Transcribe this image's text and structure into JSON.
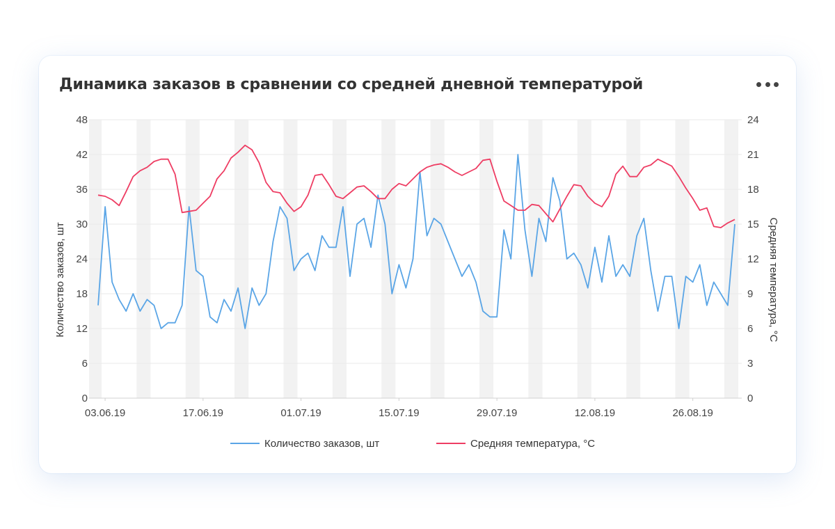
{
  "card": {
    "title": "Динамика заказов в сравнении со средней дневной температурой",
    "menu_icon": "more-horizontal-icon"
  },
  "colors": {
    "orders": "#5aa5e6",
    "temperature": "#ee3d63",
    "weekend_band": "#f2f2f2",
    "grid": "#e9e9e9"
  },
  "chart_data": {
    "type": "line",
    "title": "Динамика заказов в сравнении со средней дневной температурой",
    "start_date": "2019-06-02",
    "xlabel": "",
    "ylabel": "Количество заказов, шт",
    "y2label": "Средняя температура, °C",
    "ylim": [
      0,
      48
    ],
    "y2lim": [
      0,
      24
    ],
    "y_ticks": [
      "0",
      "6",
      "12",
      "18",
      "24",
      "30",
      "36",
      "42",
      "48"
    ],
    "y2_ticks": [
      "0",
      "3",
      "6",
      "9",
      "12",
      "15",
      "18",
      "21",
      "24"
    ],
    "x_tick_labels": [
      {
        "date": "2019-06-03",
        "label": "03.06.19"
      },
      {
        "date": "2019-06-17",
        "label": "17.06.19"
      },
      {
        "date": "2019-07-01",
        "label": "01.07.19"
      },
      {
        "date": "2019-07-15",
        "label": "15.07.19"
      },
      {
        "date": "2019-07-29",
        "label": "29.07.19"
      },
      {
        "date": "2019-08-12",
        "label": "12.08.19"
      },
      {
        "date": "2019-08-26",
        "label": "26.08.19"
      }
    ],
    "weekend_bands": [
      [
        "2019-06-01",
        "2019-06-02"
      ],
      [
        "2019-06-08",
        "2019-06-09"
      ],
      [
        "2019-06-15",
        "2019-06-16"
      ],
      [
        "2019-06-22",
        "2019-06-23"
      ],
      [
        "2019-06-29",
        "2019-06-30"
      ],
      [
        "2019-07-06",
        "2019-07-07"
      ],
      [
        "2019-07-13",
        "2019-07-14"
      ],
      [
        "2019-07-20",
        "2019-07-21"
      ],
      [
        "2019-07-27",
        "2019-07-28"
      ],
      [
        "2019-08-03",
        "2019-08-04"
      ],
      [
        "2019-08-10",
        "2019-08-11"
      ],
      [
        "2019-08-17",
        "2019-08-18"
      ],
      [
        "2019-08-24",
        "2019-08-25"
      ],
      [
        "2019-08-31",
        "2019-09-01"
      ]
    ],
    "grid": true,
    "legend": "bottom",
    "series": [
      {
        "name": "Количество заказов, шт",
        "axis": "left",
        "values": [
          16,
          33,
          20,
          17,
          15,
          18,
          15,
          17,
          16,
          12,
          13,
          13,
          16,
          33,
          22,
          21,
          14,
          13,
          17,
          15,
          19,
          12,
          19,
          16,
          18,
          27,
          33,
          31,
          22,
          24,
          25,
          22,
          28,
          26,
          26,
          33,
          21,
          30,
          31,
          26,
          35,
          30,
          18,
          23,
          19,
          24,
          39,
          28,
          31,
          30,
          27,
          24,
          21,
          23,
          20,
          15,
          14,
          14,
          29,
          24,
          42,
          29,
          21,
          31,
          27,
          38,
          34,
          24,
          25,
          23,
          19,
          26,
          20,
          28,
          21,
          23,
          21,
          28,
          31,
          22,
          15,
          21,
          21,
          12,
          21,
          20,
          23,
          16,
          20,
          18,
          16,
          30
        ]
      },
      {
        "name": "Средняя температура, °C",
        "axis": "right",
        "values": [
          17.5,
          17.4,
          17.1,
          16.6,
          17.8,
          19.1,
          19.6,
          19.9,
          20.4,
          20.6,
          20.6,
          19.3,
          16.0,
          16.1,
          16.2,
          16.8,
          17.4,
          18.9,
          19.6,
          20.7,
          21.2,
          21.8,
          21.4,
          20.3,
          18.6,
          17.8,
          17.7,
          16.8,
          16.1,
          16.5,
          17.5,
          19.2,
          19.3,
          18.4,
          17.4,
          17.2,
          17.7,
          18.2,
          18.3,
          17.8,
          17.2,
          17.2,
          18.0,
          18.5,
          18.3,
          18.9,
          19.5,
          19.9,
          20.1,
          20.2,
          19.9,
          19.5,
          19.2,
          19.5,
          19.8,
          20.5,
          20.6,
          18.7,
          17.0,
          16.6,
          16.2,
          16.2,
          16.7,
          16.6,
          15.9,
          15.2,
          16.3,
          17.4,
          18.4,
          18.3,
          17.4,
          16.8,
          16.5,
          17.4,
          19.3,
          20.0,
          19.1,
          19.1,
          19.9,
          20.1,
          20.6,
          20.3,
          20.0,
          19.1,
          18.1,
          17.2,
          16.2,
          16.4,
          14.8,
          14.7,
          15.1,
          15.4
        ]
      }
    ]
  }
}
